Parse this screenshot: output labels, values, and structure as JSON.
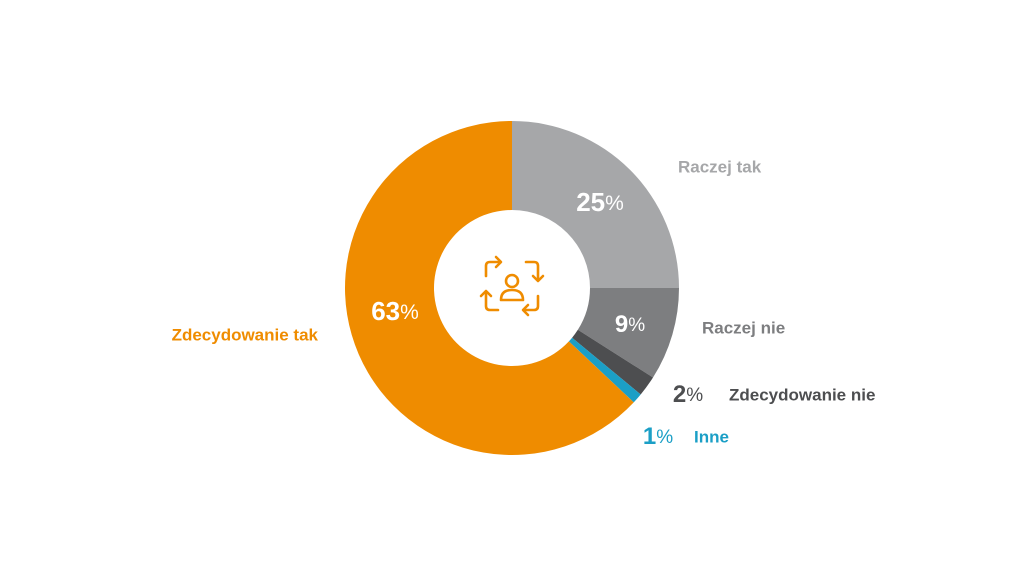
{
  "chart_data": {
    "type": "pie",
    "categories": [
      "Raczej tak",
      "Raczej nie",
      "Zdecydowanie nie",
      "Inne",
      "Zdecydowanie tak"
    ],
    "values": [
      25,
      9,
      2,
      1,
      63
    ],
    "value_labels": [
      "25",
      "9",
      "2",
      "1",
      "63"
    ],
    "percent_symbol": "%",
    "colors": [
      "#a6a7a9",
      "#7d7e80",
      "#4d4e50",
      "#1b9fc6",
      "#ef8c00"
    ],
    "label_colors": [
      "#a6a7a9",
      "#7d7e80",
      "#4d4e50",
      "#1b9fc6",
      "#ef8c00"
    ],
    "value_label_colors": [
      "#ffffff",
      "#ffffff",
      "#4d4e50",
      "#1b9fc6",
      "#ffffff"
    ],
    "donut": true,
    "start": "top",
    "direction": "clockwise",
    "center_icon": "person-refresh-icon",
    "icon_color": "#ef8c00",
    "legend": "none"
  }
}
